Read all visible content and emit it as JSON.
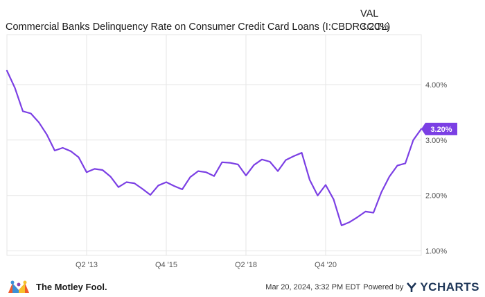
{
  "header": {
    "title": "Commercial Banks Delinquency Rate on Consumer Credit Card Loans (I:CBDRCCCL)",
    "val_label": "VAL",
    "val": "3.20%"
  },
  "footer": {
    "brand": "The Motley Fool.",
    "timestamp": "Mar 20, 2024, 3:32 PM EDT",
    "powered_by": "Powered by",
    "ycharts": "YCHARTS"
  },
  "colors": {
    "line": "#7b3fe4",
    "grid": "#e6e6e6",
    "label_bg": "#7b3fe4"
  },
  "chart_data": {
    "type": "line",
    "title": "Commercial Banks Delinquency Rate on Consumer Credit Card Loans (I:CBDRCCCL)",
    "xlabel": "",
    "ylabel": "",
    "y_ticks": [
      "1.00%",
      "2.00%",
      "3.00%",
      "4.00%"
    ],
    "y_tick_values": [
      1,
      2,
      3,
      4
    ],
    "x_ticks": [
      "Q2 '13",
      "Q4 '15",
      "Q2 '18",
      "Q4 '20"
    ],
    "x_tick_values": [
      2013.25,
      2015.75,
      2018.25,
      2020.75
    ],
    "xlim": [
      2010.75,
      2023.75
    ],
    "ylim": [
      0.92,
      4.9
    ],
    "grid": true,
    "last_value_label": "3.20%",
    "series": [
      {
        "x": [
          2010.75,
          2011.0,
          2011.25,
          2011.5,
          2011.75,
          2012.0,
          2012.25,
          2012.5,
          2012.75,
          2013.0,
          2013.25,
          2013.5,
          2013.75,
          2014.0,
          2014.25,
          2014.5,
          2014.75,
          2015.0,
          2015.25,
          2015.5,
          2015.75,
          2016.0,
          2016.25,
          2016.5,
          2016.75,
          2017.0,
          2017.25,
          2017.5,
          2017.75,
          2018.0,
          2018.25,
          2018.5,
          2018.75,
          2019.0,
          2019.25,
          2019.5,
          2019.75,
          2020.0,
          2020.25,
          2020.5,
          2020.75,
          2021.0,
          2021.25,
          2021.5,
          2021.75,
          2022.0,
          2022.25,
          2022.5,
          2022.75,
          2023.0,
          2023.25,
          2023.5,
          2023.75
        ],
        "y": [
          4.25,
          3.94,
          3.52,
          3.48,
          3.32,
          3.1,
          2.81,
          2.86,
          2.8,
          2.69,
          2.42,
          2.48,
          2.46,
          2.34,
          2.15,
          2.24,
          2.22,
          2.12,
          2.01,
          2.18,
          2.24,
          2.17,
          2.11,
          2.33,
          2.44,
          2.42,
          2.35,
          2.6,
          2.59,
          2.56,
          2.36,
          2.55,
          2.65,
          2.61,
          2.44,
          2.64,
          2.71,
          2.77,
          2.28,
          2.0,
          2.19,
          1.93,
          1.46,
          1.52,
          1.61,
          1.71,
          1.69,
          2.06,
          2.34,
          2.54,
          2.58,
          3.0,
          3.2
        ]
      }
    ]
  }
}
